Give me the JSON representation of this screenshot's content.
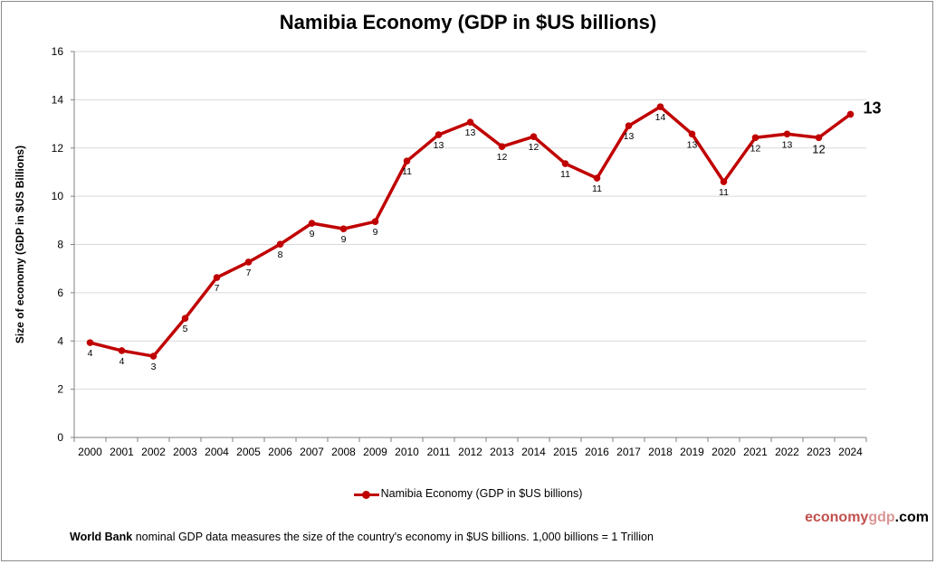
{
  "chart_data": {
    "type": "line",
    "title": "Namibia Economy (GDP in $US billions)",
    "ylabel": "Size of economy (GDP in $US Billions)",
    "xlabel": "",
    "ylim": [
      0,
      16
    ],
    "yticks": [
      0,
      2,
      4,
      6,
      8,
      10,
      12,
      14,
      16
    ],
    "grid": true,
    "legend_position": "bottom",
    "categories": [
      "2000",
      "2001",
      "2002",
      "2003",
      "2004",
      "2005",
      "2006",
      "2007",
      "2008",
      "2009",
      "2010",
      "2011",
      "2012",
      "2013",
      "2014",
      "2015",
      "2016",
      "2017",
      "2018",
      "2019",
      "2020",
      "2021",
      "2022",
      "2023",
      "2024"
    ],
    "series": [
      {
        "name": "Namibia Economy (GDP in $US billions)",
        "color": "#c00000",
        "values": [
          3.93,
          3.6,
          3.37,
          4.94,
          6.63,
          7.27,
          8.01,
          8.88,
          8.65,
          8.95,
          11.46,
          12.55,
          13.07,
          12.06,
          12.47,
          11.35,
          10.75,
          12.92,
          13.71,
          12.58,
          10.6,
          12.43,
          12.58,
          12.43,
          13.4
        ],
        "data_labels": [
          "4",
          "4",
          "3",
          "5",
          "7",
          "7",
          "8",
          "9",
          "9",
          "9",
          "11",
          "13",
          "13",
          "12",
          "12",
          "11",
          "11",
          "13",
          "14",
          "13",
          "11",
          "12",
          "13",
          "12",
          "13"
        ]
      }
    ]
  },
  "footer": {
    "brand_part1": "economy",
    "brand_part2": "gdp",
    "brand_part3": ".com",
    "note_bold": "World Bank",
    "note_text": " nominal GDP data  measures the size of the country's economy in $US billions. 1,000 billions = 1 Trillion"
  },
  "colors": {
    "line": "#c00000",
    "grid": "#d9d9d9",
    "brand1": "#c0504d",
    "brand2": "#d99694"
  }
}
